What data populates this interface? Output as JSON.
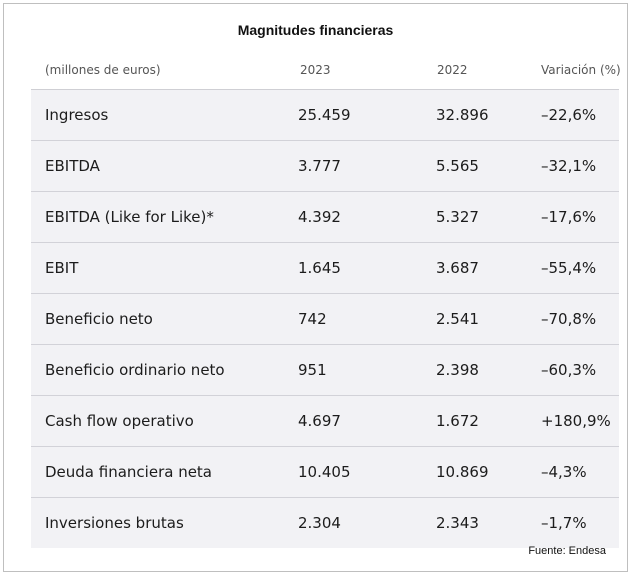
{
  "title": "Magnitudes financieras",
  "columns": [
    "(millones de euros)",
    "2023",
    "2022",
    "Variación (%)"
  ],
  "rows": [
    [
      "Ingresos",
      "25.459",
      "32.896",
      "–22,6%"
    ],
    [
      "EBITDA",
      "3.777",
      "5.565",
      "–32,1%"
    ],
    [
      "EBITDA (Like for Like)*",
      "4.392",
      "5.327",
      "–17,6%"
    ],
    [
      "EBIT",
      "1.645",
      "3.687",
      "–55,4%"
    ],
    [
      "Beneficio neto",
      "742",
      "2.541",
      "–70,8%"
    ],
    [
      "Beneficio ordinario neto",
      "951",
      "2.398",
      "–60,3%"
    ],
    [
      "Cash flow operativo",
      "4.697",
      "1.672",
      "+180,9%"
    ],
    [
      "Deuda financiera neta",
      "10.405",
      "10.869",
      "–4,3%"
    ],
    [
      "Inversiones brutas",
      "2.304",
      "2.343",
      "–1,7%"
    ]
  ],
  "source": "Fuente: Endesa"
}
